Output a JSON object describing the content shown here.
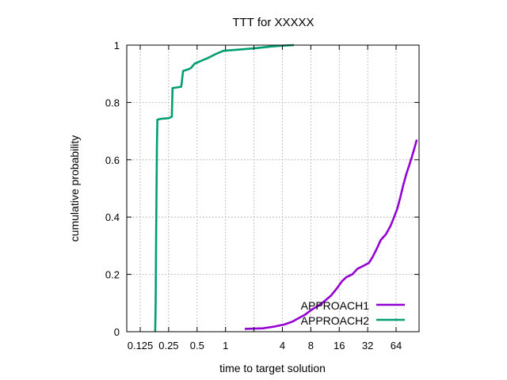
{
  "chart_data": {
    "type": "line",
    "title": "TTT for XXXXX",
    "xlabel": "time to target solution",
    "ylabel": "cumulative probability",
    "x_scale": "log2",
    "xlim": [
      0.09,
      112
    ],
    "ylim": [
      0,
      1
    ],
    "x_ticks": [
      {
        "value": 0.125,
        "label": "0.125"
      },
      {
        "value": 0.25,
        "label": "0.25"
      },
      {
        "value": 0.5,
        "label": "0.5"
      },
      {
        "value": 1,
        "label": "1"
      },
      {
        "value": 2,
        "label": ""
      },
      {
        "value": 4,
        "label": "4"
      },
      {
        "value": 8,
        "label": "8"
      },
      {
        "value": 16,
        "label": "16"
      },
      {
        "value": 32,
        "label": "32"
      },
      {
        "value": 64,
        "label": "64"
      }
    ],
    "y_ticks": [
      {
        "value": 0,
        "label": "0"
      },
      {
        "value": 0.2,
        "label": "0.2"
      },
      {
        "value": 0.4,
        "label": "0.4"
      },
      {
        "value": 0.6,
        "label": "0.6"
      },
      {
        "value": 0.8,
        "label": "0.8"
      },
      {
        "value": 1,
        "label": "1"
      }
    ],
    "grid": true,
    "legend_position": "bottom-right",
    "series": [
      {
        "name": "APPROACH1",
        "color": "#9400d3",
        "points": [
          [
            1.6,
            0.01
          ],
          [
            2.5,
            0.012
          ],
          [
            3.3,
            0.018
          ],
          [
            4.2,
            0.025
          ],
          [
            5.1,
            0.035
          ],
          [
            6.0,
            0.048
          ],
          [
            7.0,
            0.06
          ],
          [
            8.0,
            0.075
          ],
          [
            9.5,
            0.09
          ],
          [
            11.0,
            0.105
          ],
          [
            13.0,
            0.125
          ],
          [
            15.0,
            0.15
          ],
          [
            17.0,
            0.175
          ],
          [
            19.0,
            0.19
          ],
          [
            22.0,
            0.2
          ],
          [
            25.0,
            0.22
          ],
          [
            29.0,
            0.23
          ],
          [
            33.0,
            0.24
          ],
          [
            36.0,
            0.26
          ],
          [
            40.0,
            0.29
          ],
          [
            44.0,
            0.32
          ],
          [
            50.0,
            0.34
          ],
          [
            56.0,
            0.37
          ],
          [
            61.0,
            0.4
          ],
          [
            66.0,
            0.43
          ],
          [
            71.0,
            0.47
          ],
          [
            76.0,
            0.51
          ],
          [
            82.0,
            0.55
          ],
          [
            88.0,
            0.58
          ],
          [
            94.0,
            0.61
          ],
          [
            100.0,
            0.64
          ],
          [
            106.0,
            0.67
          ]
        ]
      },
      {
        "name": "APPROACH2",
        "color": "#009e73",
        "points": [
          [
            0.18,
            0.0
          ],
          [
            0.182,
            0.1
          ],
          [
            0.184,
            0.3
          ],
          [
            0.186,
            0.5
          ],
          [
            0.188,
            0.65
          ],
          [
            0.19,
            0.74
          ],
          [
            0.21,
            0.743
          ],
          [
            0.25,
            0.745
          ],
          [
            0.27,
            0.75
          ],
          [
            0.275,
            0.85
          ],
          [
            0.3,
            0.852
          ],
          [
            0.34,
            0.855
          ],
          [
            0.355,
            0.91
          ],
          [
            0.4,
            0.915
          ],
          [
            0.43,
            0.92
          ],
          [
            0.47,
            0.935
          ],
          [
            0.55,
            0.945
          ],
          [
            0.65,
            0.955
          ],
          [
            0.8,
            0.97
          ],
          [
            0.95,
            0.98
          ],
          [
            1.2,
            0.983
          ],
          [
            1.6,
            0.986
          ],
          [
            2.2,
            0.99
          ],
          [
            3.0,
            0.995
          ],
          [
            4.0,
            0.998
          ],
          [
            5.3,
            1.0
          ]
        ]
      }
    ]
  }
}
